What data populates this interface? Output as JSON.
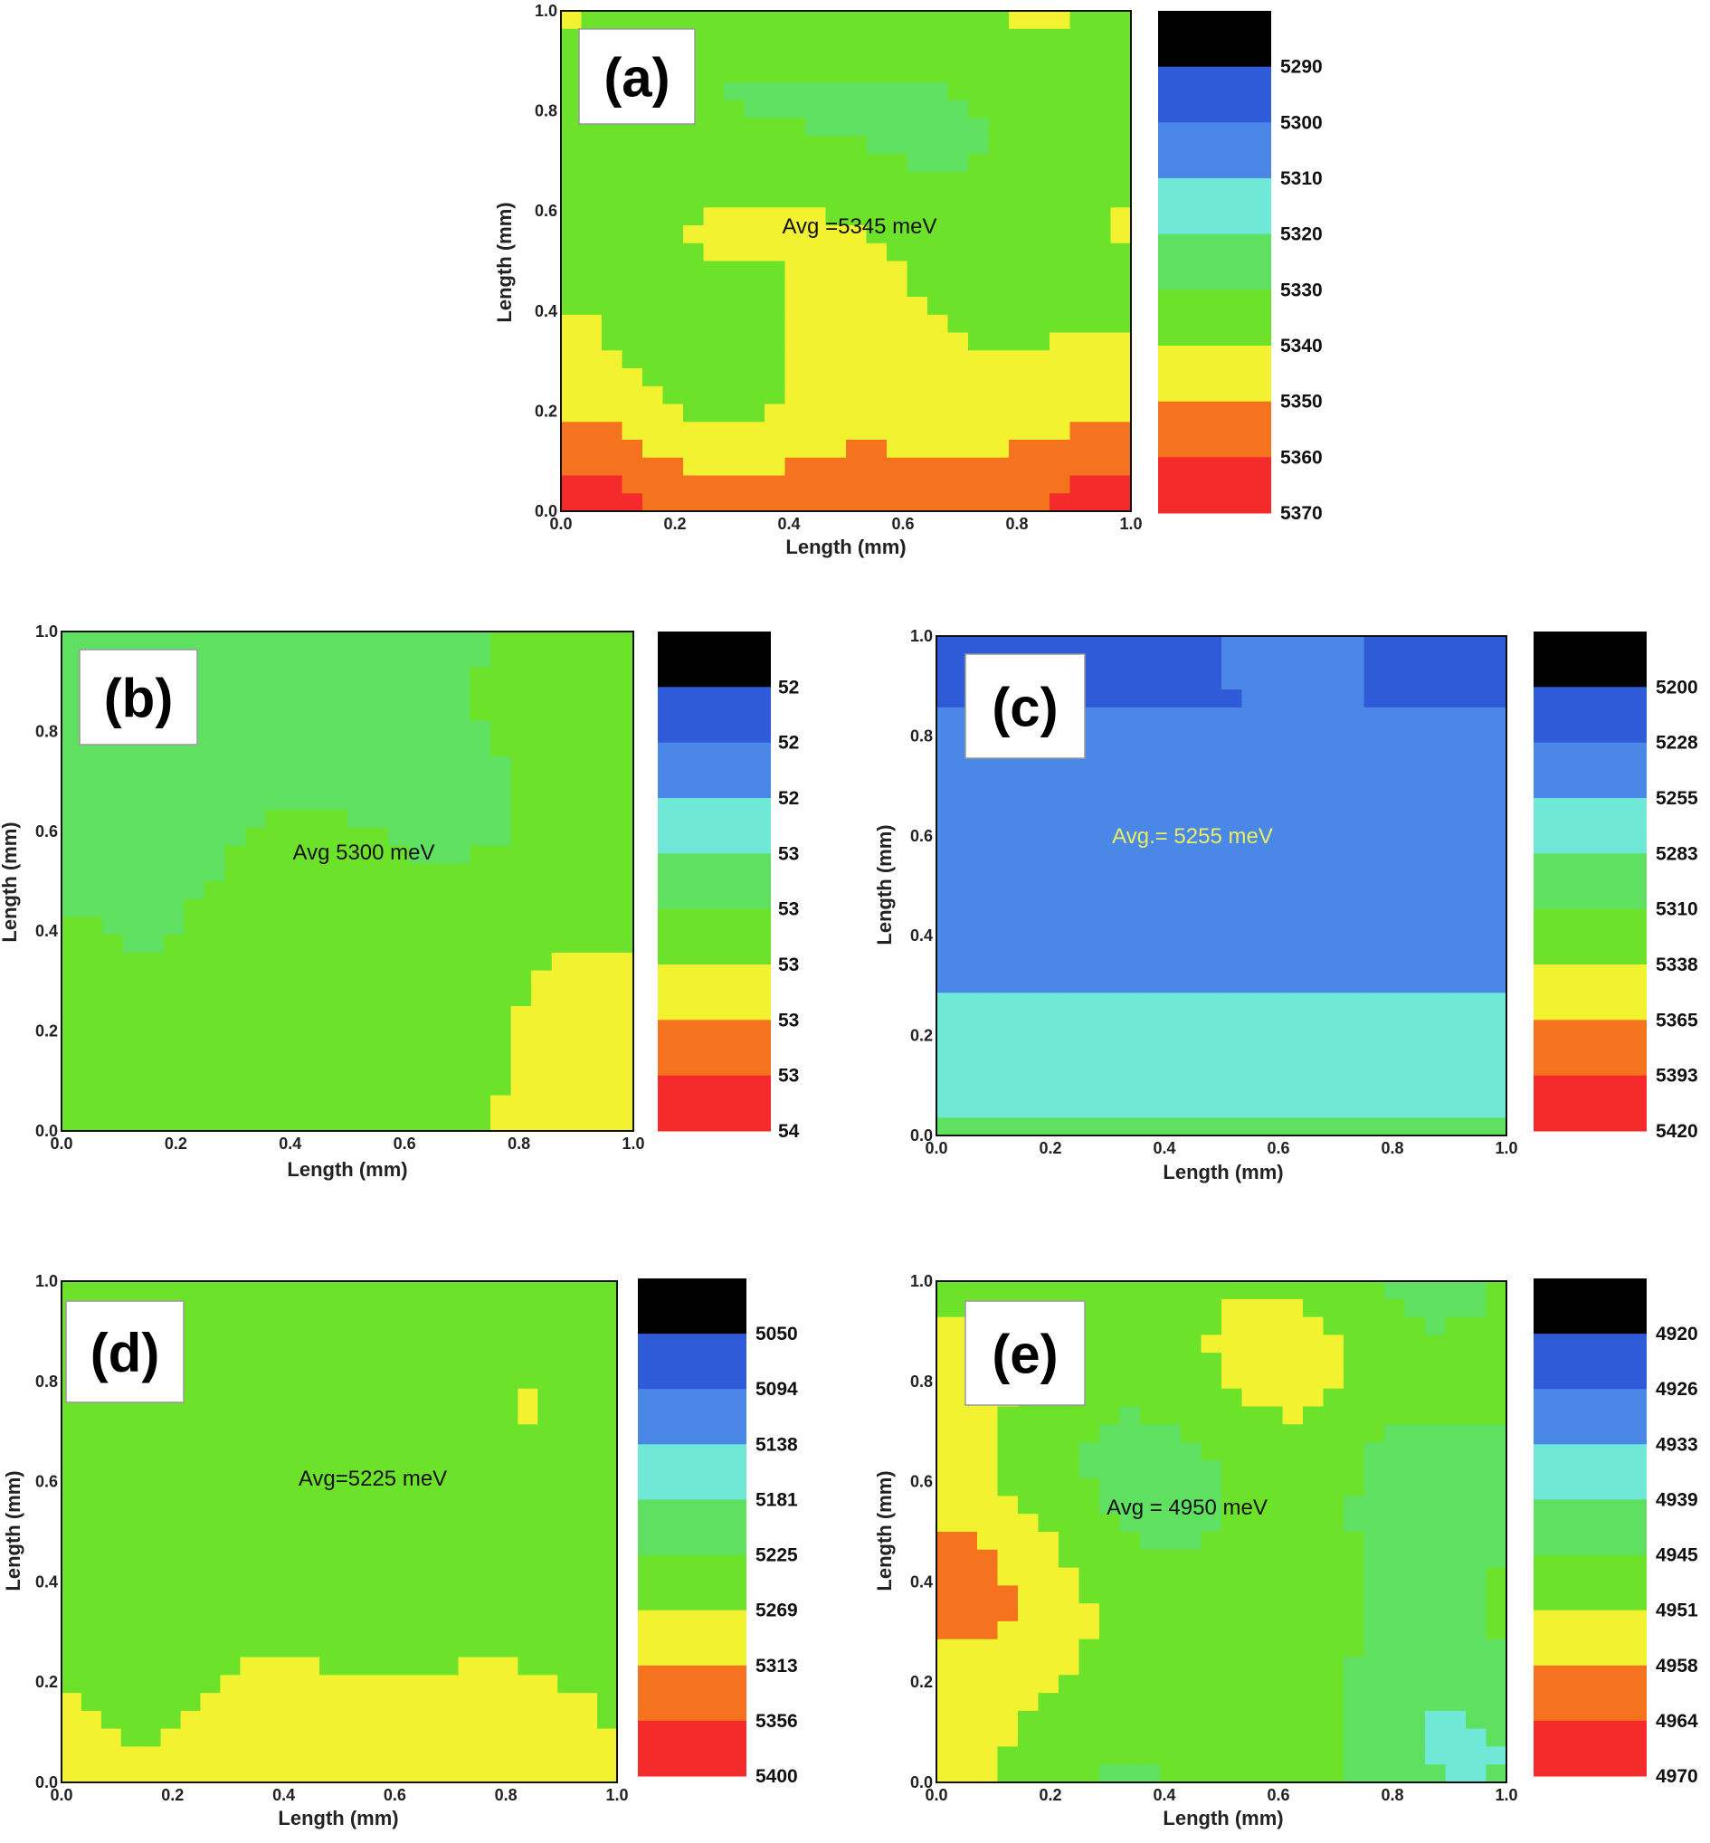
{
  "chart_data": [
    {
      "type": "heatmap",
      "panel_label": "(a)",
      "annotation": "Avg =5345 meV",
      "xlabel": "Length (mm)",
      "ylabel": "Length (mm)",
      "xlim": [
        0,
        1
      ],
      "ylim": [
        0,
        1
      ],
      "x_ticks": [
        "0.0",
        "0.2",
        "0.4",
        "0.6",
        "0.8",
        "1.0"
      ],
      "y_ticks": [
        "0.0",
        "0.2",
        "0.4",
        "0.6",
        "0.8",
        "1.0"
      ],
      "colorbar_labels": [
        "5290",
        "5300",
        "5310",
        "5320",
        "5330",
        "5340",
        "5350",
        "5360",
        "5370"
      ],
      "colorbar_colors": [
        "#000000",
        "#2f5bd9",
        "#4b87e6",
        "#6fe8d8",
        "#5fe060",
        "#6de22b",
        "#f2f230",
        "#f5721f",
        "#f52a2a"
      ],
      "avg_meV": 5345
    },
    {
      "type": "heatmap",
      "panel_label": "(b)",
      "annotation": "Avg 5300 meV",
      "xlabel": "Length (mm)",
      "ylabel": "Length (mm)",
      "xlim": [
        0,
        1
      ],
      "ylim": [
        0,
        1
      ],
      "x_ticks": [
        "0.0",
        "0.2",
        "0.4",
        "0.6",
        "0.8",
        "1.0"
      ],
      "y_ticks": [
        "0.0",
        "0.2",
        "0.4",
        "0.6",
        "0.8",
        "1.0"
      ],
      "colorbar_labels": [
        "52",
        "52",
        "52",
        "53",
        "53",
        "53",
        "53",
        "53",
        "54"
      ],
      "colorbar_colors": [
        "#000000",
        "#2f5bd9",
        "#4b87e6",
        "#6fe8d8",
        "#5fe060",
        "#6de22b",
        "#f2f230",
        "#f5721f",
        "#f52a2a"
      ],
      "avg_meV": 5300
    },
    {
      "type": "heatmap",
      "panel_label": "(c)",
      "annotation": "Avg.= 5255 meV",
      "xlabel": "Length (mm)",
      "ylabel": "Length (mm)",
      "xlim": [
        0,
        1
      ],
      "ylim": [
        0,
        1
      ],
      "x_ticks": [
        "0.0",
        "0.2",
        "0.4",
        "0.6",
        "0.8",
        "1.0"
      ],
      "y_ticks": [
        "0.0",
        "0.2",
        "0.4",
        "0.6",
        "0.8",
        "1.0"
      ],
      "colorbar_labels": [
        "5200",
        "5228",
        "5255",
        "5283",
        "5310",
        "5338",
        "5365",
        "5393",
        "5420"
      ],
      "colorbar_colors": [
        "#000000",
        "#2f5bd9",
        "#4b87e6",
        "#6fe8d8",
        "#5fe060",
        "#6de22b",
        "#f2f230",
        "#f5721f",
        "#f52a2a"
      ],
      "annotation_color": "#e8f060",
      "avg_meV": 5255
    },
    {
      "type": "heatmap",
      "panel_label": "(d)",
      "annotation": "Avg=5225 meV",
      "xlabel": "Length (mm)",
      "ylabel": "Length (mm)",
      "xlim": [
        0,
        1
      ],
      "ylim": [
        0,
        1
      ],
      "x_ticks": [
        "0.0",
        "0.2",
        "0.4",
        "0.6",
        "0.8",
        "1.0"
      ],
      "y_ticks": [
        "0.0",
        "0.2",
        "0.4",
        "0.6",
        "0.8",
        "1.0"
      ],
      "colorbar_labels": [
        "5050",
        "5094",
        "5138",
        "5181",
        "5225",
        "5269",
        "5313",
        "5356",
        "5400"
      ],
      "colorbar_colors": [
        "#000000",
        "#2f5bd9",
        "#4b87e6",
        "#6fe8d8",
        "#5fe060",
        "#6de22b",
        "#f2f230",
        "#f5721f",
        "#f52a2a"
      ],
      "avg_meV": 5225
    },
    {
      "type": "heatmap",
      "panel_label": "(e)",
      "annotation": "Avg = 4950 meV",
      "xlabel": "Length (mm)",
      "ylabel": "Length (mm)",
      "xlim": [
        0,
        1
      ],
      "ylim": [
        0,
        1
      ],
      "x_ticks": [
        "0.0",
        "0.2",
        "0.4",
        "0.6",
        "0.8",
        "1.0"
      ],
      "y_ticks": [
        "0.0",
        "0.2",
        "0.4",
        "0.6",
        "0.8",
        "1.0"
      ],
      "colorbar_labels": [
        "4920",
        "4926",
        "4933",
        "4939",
        "4945",
        "4951",
        "4958",
        "4964",
        "4970"
      ],
      "colorbar_colors": [
        "#000000",
        "#2f5bd9",
        "#4b87e6",
        "#6fe8d8",
        "#5fe060",
        "#6de22b",
        "#f2f230",
        "#f5721f",
        "#f52a2a"
      ],
      "avg_meV": 4950
    }
  ]
}
